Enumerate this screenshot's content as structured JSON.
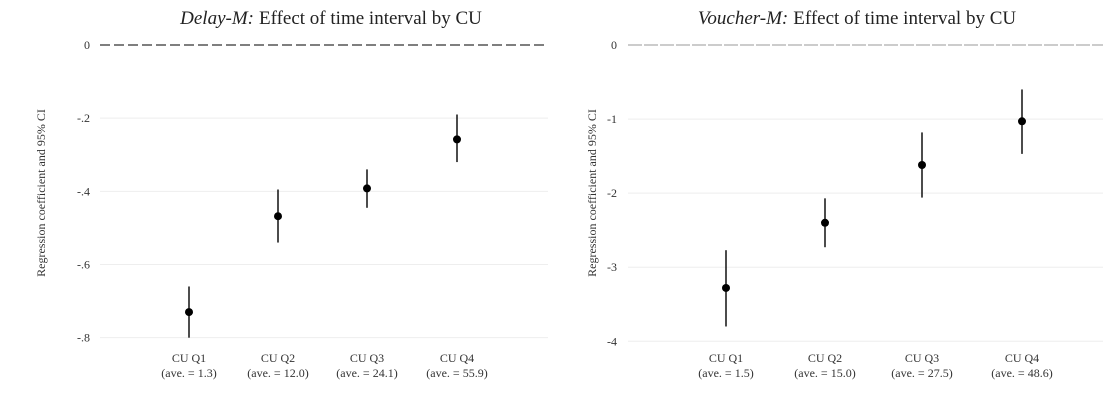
{
  "chart_data": [
    {
      "type": "scatter",
      "title_italic": "Delay-M:",
      "title_rest": "Effect of time interval by CU",
      "xlabel": "",
      "ylabel": "Regression coefficient and 95% CI",
      "categories": [
        "CU Q1",
        "CU Q2",
        "CU Q3",
        "CU Q4"
      ],
      "category_sublabels": [
        "(ave. = 1.3)",
        "(ave. = 12.0)",
        "(ave. = 24.1)",
        "(ave. = 55.9)"
      ],
      "series": [
        {
          "values": [
            -0.73,
            -0.468,
            -0.392,
            -0.258
          ],
          "ci_low": [
            -0.8,
            -0.54,
            -0.445,
            -0.32
          ],
          "ci_high": [
            -0.66,
            -0.395,
            -0.34,
            -0.19
          ]
        }
      ],
      "ylim": [
        -0.82,
        0.0
      ],
      "yticks": [
        0,
        -0.2,
        -0.4,
        -0.6,
        -0.8
      ],
      "ytick_labels": [
        "0",
        "-.2",
        "-.4",
        "-.6",
        "-.8"
      ],
      "reference_line": 0,
      "grid": true
    },
    {
      "type": "scatter",
      "title_italic": "Voucher-M:",
      "title_rest": "Effect of time interval by CU",
      "xlabel": "",
      "ylabel": "Regression coefficient and 95% CI",
      "categories": [
        "CU Q1",
        "CU Q2",
        "CU Q3",
        "CU Q4"
      ],
      "category_sublabels": [
        "(ave. = 1.5)",
        "(ave. = 15.0)",
        "(ave. = 27.5)",
        "(ave. = 48.6)"
      ],
      "series": [
        {
          "values": [
            -3.28,
            -2.4,
            -1.62,
            -1.03
          ],
          "ci_low": [
            -3.8,
            -2.73,
            -2.06,
            -1.47
          ],
          "ci_high": [
            -2.77,
            -2.07,
            -1.18,
            -0.6
          ]
        }
      ],
      "ylim": [
        -4.05,
        0.0
      ],
      "yticks": [
        0,
        -1,
        -2,
        -3,
        -4
      ],
      "ytick_labels": [
        "0",
        "-1",
        "-2",
        "-3",
        "-4"
      ],
      "reference_line": 0,
      "grid": true
    }
  ],
  "colors": {
    "marker": "#000000",
    "grid": "#eeeeee",
    "ref_line_left": "#555555",
    "ref_line_right": "#bbbbbb"
  }
}
